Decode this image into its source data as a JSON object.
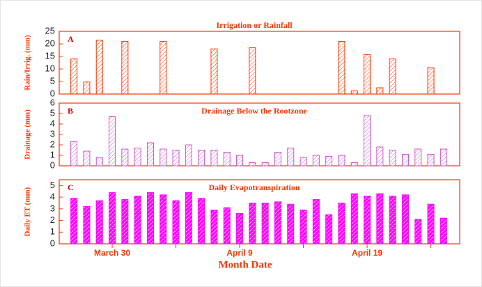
{
  "chart_data": [
    {
      "type": "bar",
      "label": "A",
      "title": "Irrigation or Rainfall",
      "ylabel": "Rain/Irrig. (mm)",
      "values": [
        14,
        4.8,
        21.5,
        0,
        21,
        0,
        0,
        21,
        0,
        0,
        0,
        18,
        0,
        0,
        18.5,
        0,
        0,
        0,
        0,
        0,
        0,
        21,
        1.3,
        15.7,
        2.5,
        14,
        0,
        0,
        10.5,
        0
      ],
      "ylim": [
        0,
        25
      ],
      "yticks": [
        0,
        5,
        10,
        15,
        20,
        25
      ],
      "color": "#ff3300",
      "bar_style": "outline"
    },
    {
      "type": "bar",
      "label": "B",
      "title": "Drainage Below the Rootzone",
      "ylabel": "Drainage (mm)",
      "values": [
        2.3,
        1.4,
        0.8,
        4.7,
        1.6,
        1.7,
        2.2,
        1.6,
        1.5,
        2.0,
        1.5,
        1.5,
        1.3,
        1.0,
        0.3,
        0.3,
        1.3,
        1.7,
        0.8,
        1.0,
        0.9,
        1.0,
        0.3,
        4.8,
        1.8,
        1.5,
        1.1,
        1.6,
        1.1,
        1.6
      ],
      "ylim": [
        0,
        6
      ],
      "yticks": [
        0,
        1,
        2,
        3,
        4,
        5,
        6
      ],
      "color": "#cc55cc",
      "bar_style": "outline"
    },
    {
      "type": "bar",
      "label": "C",
      "title": "Daily Evapotranspiration",
      "ylabel": "Daily ET (mm)",
      "xlabel": "Month Date",
      "categories": [
        null,
        null,
        null,
        "March 30",
        null,
        null,
        null,
        null,
        null,
        null,
        null,
        null,
        null,
        "April 9",
        null,
        null,
        null,
        null,
        null,
        null,
        null,
        null,
        null,
        "April 19",
        null,
        null,
        null,
        null,
        null,
        null
      ],
      "values": [
        3.9,
        3.2,
        3.7,
        4.4,
        3.8,
        4.1,
        4.4,
        4.2,
        3.7,
        4.4,
        3.9,
        2.9,
        3.1,
        2.6,
        3.5,
        3.5,
        3.6,
        3.4,
        2.9,
        3.8,
        2.5,
        3.5,
        4.3,
        4.1,
        4.3,
        4.1,
        4.2,
        2.1,
        3.4,
        2.2
      ],
      "ylim": [
        0,
        5.5
      ],
      "yticks": [
        0,
        1,
        2,
        3,
        4,
        5
      ],
      "color": "#ff00ff",
      "bar_style": "filled"
    }
  ]
}
